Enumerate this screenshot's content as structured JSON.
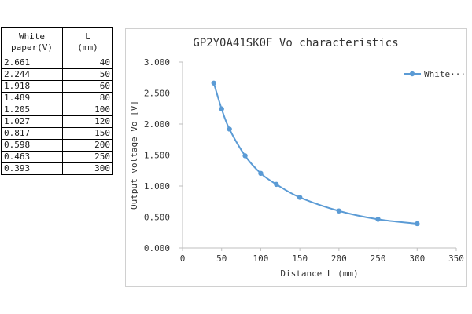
{
  "table": {
    "header_v_line1": "White",
    "header_v_line2": "paper(V)",
    "header_l_line1": "L",
    "header_l_line2": "(mm)",
    "rows": [
      {
        "v": "2.661",
        "l": "40"
      },
      {
        "v": "2.244",
        "l": "50"
      },
      {
        "v": "1.918",
        "l": "60"
      },
      {
        "v": "1.489",
        "l": "80"
      },
      {
        "v": "1.205",
        "l": "100"
      },
      {
        "v": "1.027",
        "l": "120"
      },
      {
        "v": "0.817",
        "l": "150"
      },
      {
        "v": "0.598",
        "l": "200"
      },
      {
        "v": "0.463",
        "l": "250"
      },
      {
        "v": "0.393",
        "l": "300"
      }
    ]
  },
  "chart_data": {
    "type": "line",
    "title": "GP2Y0A41SK0F  Vo characteristics",
    "xlabel": "Distance L (mm)",
    "ylabel": "Output voltage Vo [V]",
    "xlim": [
      0,
      350
    ],
    "ylim": [
      0,
      3
    ],
    "x_ticks": [
      "0",
      "50",
      "100",
      "150",
      "200",
      "250",
      "300",
      "350"
    ],
    "x_tick_values": [
      0,
      50,
      100,
      150,
      200,
      250,
      300,
      350
    ],
    "y_ticks": [
      "0.000",
      "0.500",
      "1.000",
      "1.500",
      "2.000",
      "2.500",
      "3.000"
    ],
    "y_tick_values": [
      0,
      0.5,
      1,
      1.5,
      2,
      2.5,
      3
    ],
    "grid": false,
    "legend_position": "top-right",
    "series": [
      {
        "name": "White",
        "legend_label": "White···",
        "color": "#5b9bd5",
        "x": [
          40,
          50,
          60,
          80,
          100,
          120,
          150,
          200,
          250,
          300
        ],
        "y": [
          2.661,
          2.244,
          1.918,
          1.489,
          1.205,
          1.027,
          0.817,
          0.598,
          0.463,
          0.393
        ]
      }
    ]
  }
}
